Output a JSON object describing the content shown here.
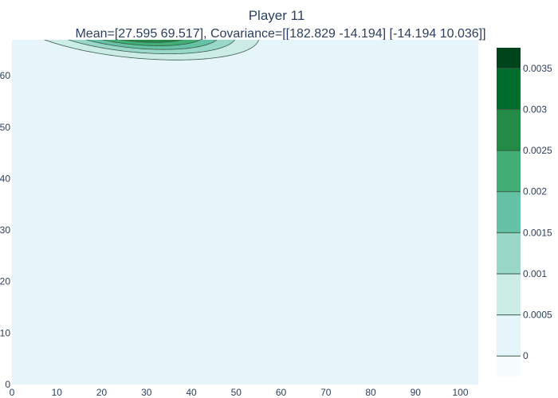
{
  "chart_data": {
    "type": "contour",
    "title": "Player 11",
    "subtitle": "Mean=[27.595 69.517], Covariance=[[182.829 -14.194]  [-14.194  10.036]]",
    "mean": [
      27.595,
      69.517
    ],
    "covariance": [
      [
        182.829,
        -14.194
      ],
      [
        -14.194,
        10.036
      ]
    ],
    "xlim": [
      0,
      104
    ],
    "ylim": [
      0,
      67
    ],
    "x_ticks": [
      0,
      10,
      20,
      30,
      40,
      50,
      60,
      70,
      80,
      90,
      100
    ],
    "y_ticks": [
      0,
      10,
      20,
      30,
      40,
      50,
      60
    ],
    "contour_levels": [
      0,
      0.0005,
      0.001,
      0.0015,
      0.002,
      0.0025,
      0.003,
      0.0035
    ],
    "colorbar": {
      "ticks": [
        "0",
        "0.0005",
        "0.001",
        "0.0015",
        "0.002",
        "0.0025",
        "0.003",
        "0.0035"
      ],
      "range": [
        -0.00025,
        0.00375
      ]
    },
    "fill_colors": [
      "#f7fcfd",
      "#e5f5f9",
      "#ccece6",
      "#99d8c9",
      "#66c2a4",
      "#41ae76",
      "#238b45",
      "#006d2c",
      "#00441b"
    ],
    "line_color": "#3b5a48"
  }
}
